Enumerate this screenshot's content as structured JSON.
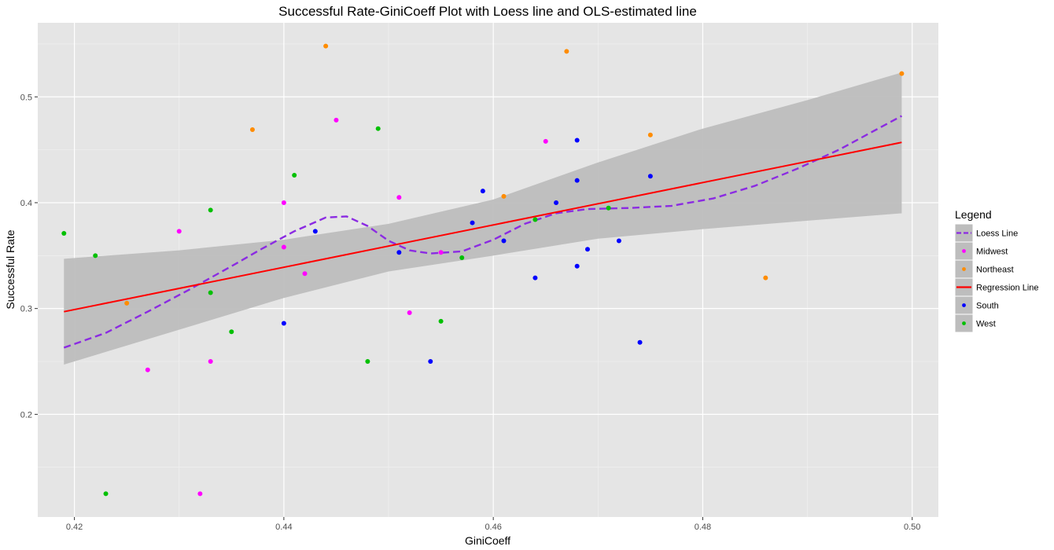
{
  "chart_data": {
    "type": "scatter",
    "title": "Successful Rate-GiniCoeff Plot with Loess line and OLS-estimated line",
    "xlabel": "GiniCoeff",
    "ylabel": "Successful Rate",
    "xlim": [
      0.4165,
      0.5025
    ],
    "ylim": [
      0.103,
      0.57
    ],
    "x_ticks": [
      {
        "value": 0.42,
        "label": "0.42"
      },
      {
        "value": 0.44,
        "label": "0.44"
      },
      {
        "value": 0.46,
        "label": "0.46"
      },
      {
        "value": 0.48,
        "label": "0.48"
      },
      {
        "value": 0.5,
        "label": "0.50"
      }
    ],
    "y_ticks": [
      {
        "value": 0.2,
        "label": "0.2"
      },
      {
        "value": 0.3,
        "label": "0.3"
      },
      {
        "value": 0.4,
        "label": "0.4"
      },
      {
        "value": 0.5,
        "label": "0.5"
      }
    ],
    "grid": true,
    "background": "#e5e5e5",
    "legend_placement": "right",
    "legend_title": "Legend",
    "legend": [
      {
        "label": "Loess Line",
        "kind": "dashed-line",
        "color": "#8b2be2"
      },
      {
        "label": "Midwest",
        "kind": "point",
        "color": "#ff00ff"
      },
      {
        "label": "Northeast",
        "kind": "point",
        "color": "#ff8c00"
      },
      {
        "label": "Regression Line",
        "kind": "line",
        "color": "#ff0000"
      },
      {
        "label": "South",
        "kind": "point",
        "color": "#0000ff"
      },
      {
        "label": "West",
        "kind": "point",
        "color": "#00c000"
      }
    ],
    "series": [
      {
        "name": "Midwest",
        "color": "#ff00ff",
        "points": [
          [
            0.427,
            0.242
          ],
          [
            0.43,
            0.373
          ],
          [
            0.432,
            0.125
          ],
          [
            0.433,
            0.25
          ],
          [
            0.44,
            0.4
          ],
          [
            0.44,
            0.358
          ],
          [
            0.442,
            0.333
          ],
          [
            0.445,
            0.478
          ],
          [
            0.451,
            0.405
          ],
          [
            0.452,
            0.296
          ],
          [
            0.455,
            0.353
          ],
          [
            0.465,
            0.458
          ]
        ]
      },
      {
        "name": "Northeast",
        "color": "#ff8c00",
        "points": [
          [
            0.425,
            0.305
          ],
          [
            0.437,
            0.469
          ],
          [
            0.444,
            0.548
          ],
          [
            0.461,
            0.406
          ],
          [
            0.467,
            0.543
          ],
          [
            0.475,
            0.464
          ],
          [
            0.486,
            0.329
          ],
          [
            0.499,
            0.522
          ]
        ]
      },
      {
        "name": "South",
        "color": "#0000ff",
        "points": [
          [
            0.44,
            0.286
          ],
          [
            0.443,
            0.373
          ],
          [
            0.451,
            0.353
          ],
          [
            0.454,
            0.25
          ],
          [
            0.458,
            0.381
          ],
          [
            0.459,
            0.411
          ],
          [
            0.461,
            0.364
          ],
          [
            0.464,
            0.329
          ],
          [
            0.466,
            0.4
          ],
          [
            0.468,
            0.459
          ],
          [
            0.468,
            0.421
          ],
          [
            0.468,
            0.34
          ],
          [
            0.469,
            0.356
          ],
          [
            0.472,
            0.364
          ],
          [
            0.474,
            0.268
          ],
          [
            0.475,
            0.425
          ]
        ]
      },
      {
        "name": "West",
        "color": "#00c000",
        "points": [
          [
            0.419,
            0.371
          ],
          [
            0.422,
            0.35
          ],
          [
            0.423,
            0.125
          ],
          [
            0.433,
            0.393
          ],
          [
            0.433,
            0.315
          ],
          [
            0.435,
            0.278
          ],
          [
            0.441,
            0.426
          ],
          [
            0.448,
            0.25
          ],
          [
            0.449,
            0.47
          ],
          [
            0.455,
            0.288
          ],
          [
            0.457,
            0.348
          ],
          [
            0.464,
            0.384
          ],
          [
            0.471,
            0.395
          ]
        ]
      }
    ],
    "regression_line": {
      "name": "Regression Line",
      "color": "#ff0000",
      "points": [
        [
          0.419,
          0.297
        ],
        [
          0.499,
          0.457
        ]
      ],
      "confidence_band": {
        "color": "#bdbdbd",
        "upper": [
          [
            0.419,
            0.347
          ],
          [
            0.43,
            0.355
          ],
          [
            0.44,
            0.365
          ],
          [
            0.45,
            0.38
          ],
          [
            0.46,
            0.403
          ],
          [
            0.47,
            0.438
          ],
          [
            0.48,
            0.47
          ],
          [
            0.49,
            0.497
          ],
          [
            0.499,
            0.523
          ]
        ],
        "lower": [
          [
            0.419,
            0.247
          ],
          [
            0.43,
            0.28
          ],
          [
            0.44,
            0.31
          ],
          [
            0.45,
            0.335
          ],
          [
            0.46,
            0.35
          ],
          [
            0.47,
            0.366
          ],
          [
            0.48,
            0.375
          ],
          [
            0.49,
            0.383
          ],
          [
            0.499,
            0.39
          ]
        ]
      }
    },
    "loess_line": {
      "name": "Loess Line",
      "color": "#8b2be2",
      "dashed": true,
      "points": [
        [
          0.419,
          0.263
        ],
        [
          0.423,
          0.277
        ],
        [
          0.427,
          0.297
        ],
        [
          0.431,
          0.318
        ],
        [
          0.435,
          0.34
        ],
        [
          0.438,
          0.357
        ],
        [
          0.441,
          0.373
        ],
        [
          0.444,
          0.386
        ],
        [
          0.446,
          0.387
        ],
        [
          0.448,
          0.378
        ],
        [
          0.45,
          0.364
        ],
        [
          0.452,
          0.355
        ],
        [
          0.454,
          0.352
        ],
        [
          0.457,
          0.354
        ],
        [
          0.46,
          0.365
        ],
        [
          0.463,
          0.38
        ],
        [
          0.466,
          0.39
        ],
        [
          0.469,
          0.394
        ],
        [
          0.473,
          0.395
        ],
        [
          0.477,
          0.397
        ],
        [
          0.481,
          0.404
        ],
        [
          0.485,
          0.416
        ],
        [
          0.489,
          0.432
        ],
        [
          0.493,
          0.45
        ],
        [
          0.496,
          0.466
        ],
        [
          0.499,
          0.482
        ]
      ]
    }
  }
}
